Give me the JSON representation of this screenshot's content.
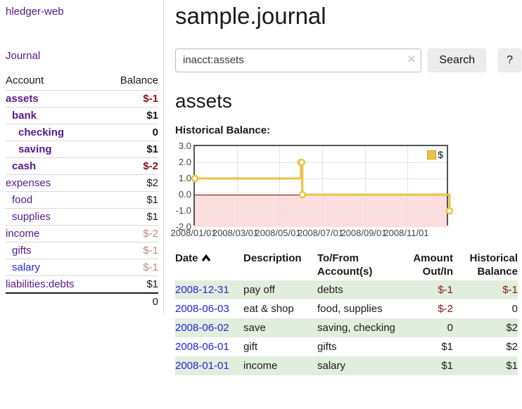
{
  "app": {
    "title": "hledger-web"
  },
  "sidebar": {
    "journal_link": "Journal",
    "accounts_table": {
      "account_header": "Account",
      "balance_header": "Balance",
      "rows": [
        {
          "name": "assets",
          "indent": 1,
          "balance": "$-1",
          "bold": true,
          "negative": true,
          "unvisited": false
        },
        {
          "name": "bank",
          "indent": 2,
          "balance": "$1",
          "bold": true,
          "negative": false,
          "unvisited": false
        },
        {
          "name": "checking",
          "indent": 3,
          "balance": "0",
          "bold": true,
          "negative": false,
          "unvisited": false
        },
        {
          "name": "saving",
          "indent": 3,
          "balance": "$1",
          "bold": true,
          "negative": false,
          "unvisited": false
        },
        {
          "name": "cash",
          "indent": 2,
          "balance": "$-2",
          "bold": true,
          "negative": true,
          "unvisited": false
        },
        {
          "name": "expenses",
          "indent": 1,
          "balance": "$2",
          "bold": false,
          "negative": false,
          "unvisited": false
        },
        {
          "name": "food",
          "indent": 2,
          "balance": "$1",
          "bold": false,
          "negative": false,
          "unvisited": false
        },
        {
          "name": "supplies",
          "indent": 2,
          "balance": "$1",
          "bold": false,
          "negative": false,
          "unvisited": false
        },
        {
          "name": "income",
          "indent": 1,
          "balance": "$-2",
          "bold": false,
          "negative": true,
          "unvisited": false
        },
        {
          "name": "gifts",
          "indent": 2,
          "balance": "$-1",
          "bold": false,
          "negative": true,
          "unvisited": false
        },
        {
          "name": "salary",
          "indent": 2,
          "balance": "$-1",
          "bold": false,
          "negative": true,
          "unvisited": true
        },
        {
          "name": "liabilities:debts",
          "indent": 1,
          "balance": "$1",
          "bold": false,
          "negative": false,
          "unvisited": false
        }
      ],
      "total": "0"
    }
  },
  "header": {
    "title": "sample.journal"
  },
  "search": {
    "value": "inacct:assets",
    "clear_icon": "×",
    "button_label": "Search",
    "help_label": "?"
  },
  "register": {
    "heading": "assets",
    "chart_label": "Historical Balance:",
    "table": {
      "headers": [
        "Date",
        "Description",
        "To/From Account(s)",
        "Amount Out/In",
        "Historical Balance"
      ],
      "sort": "date-ascending",
      "rows": [
        {
          "date": "2008-12-31",
          "description": "pay off",
          "accounts": "debts",
          "amount": "$-1",
          "balance": "$-1"
        },
        {
          "date": "2008-06-03",
          "description": "eat & shop",
          "accounts": "food, supplies",
          "amount": "$-2",
          "balance": "0"
        },
        {
          "date": "2008-06-02",
          "description": "save",
          "accounts": "saving, checking",
          "amount": "0",
          "balance": "$2"
        },
        {
          "date": "2008-06-01",
          "description": "gift",
          "accounts": "gifts",
          "amount": "$1",
          "balance": "$2"
        },
        {
          "date": "2008-01-01",
          "description": "income",
          "accounts": "salary",
          "amount": "$1",
          "balance": "$1"
        }
      ]
    }
  },
  "chart_data": {
    "type": "line",
    "step": true,
    "title": "Historical Balance",
    "legend": "$",
    "legend_position": "top-right",
    "series": [
      {
        "name": "$",
        "color": "#edc240",
        "points": [
          [
            "2008/01/01",
            1
          ],
          [
            "2008/06/01",
            2
          ],
          [
            "2008/06/02",
            2
          ],
          [
            "2008/06/03",
            0
          ],
          [
            "2008/12/31",
            -1
          ]
        ]
      }
    ],
    "x_range": [
      "2008/01/01",
      "2008/12/31"
    ],
    "x_ticks": [
      "2008/01/01",
      "2008/03/01",
      "2008/05/01",
      "2008/07/01",
      "2008/09/01",
      "2008/11/01"
    ],
    "y_ticks": [
      "3.0",
      "2.0",
      "1.0",
      "0.0",
      "-1.0",
      "-2.0"
    ],
    "ylim": [
      -2,
      3
    ],
    "grid": true,
    "negative_region_color": "#fcdede",
    "zero_line_color": "#8b0000"
  },
  "colors": {
    "link_purple": "#551a8b",
    "link_blue": "#2323e6",
    "negative_strong": "#8b1515",
    "negative_dim": "#c28989",
    "row_stripe_green": "#e2eedd",
    "series_gold": "#edc240"
  }
}
